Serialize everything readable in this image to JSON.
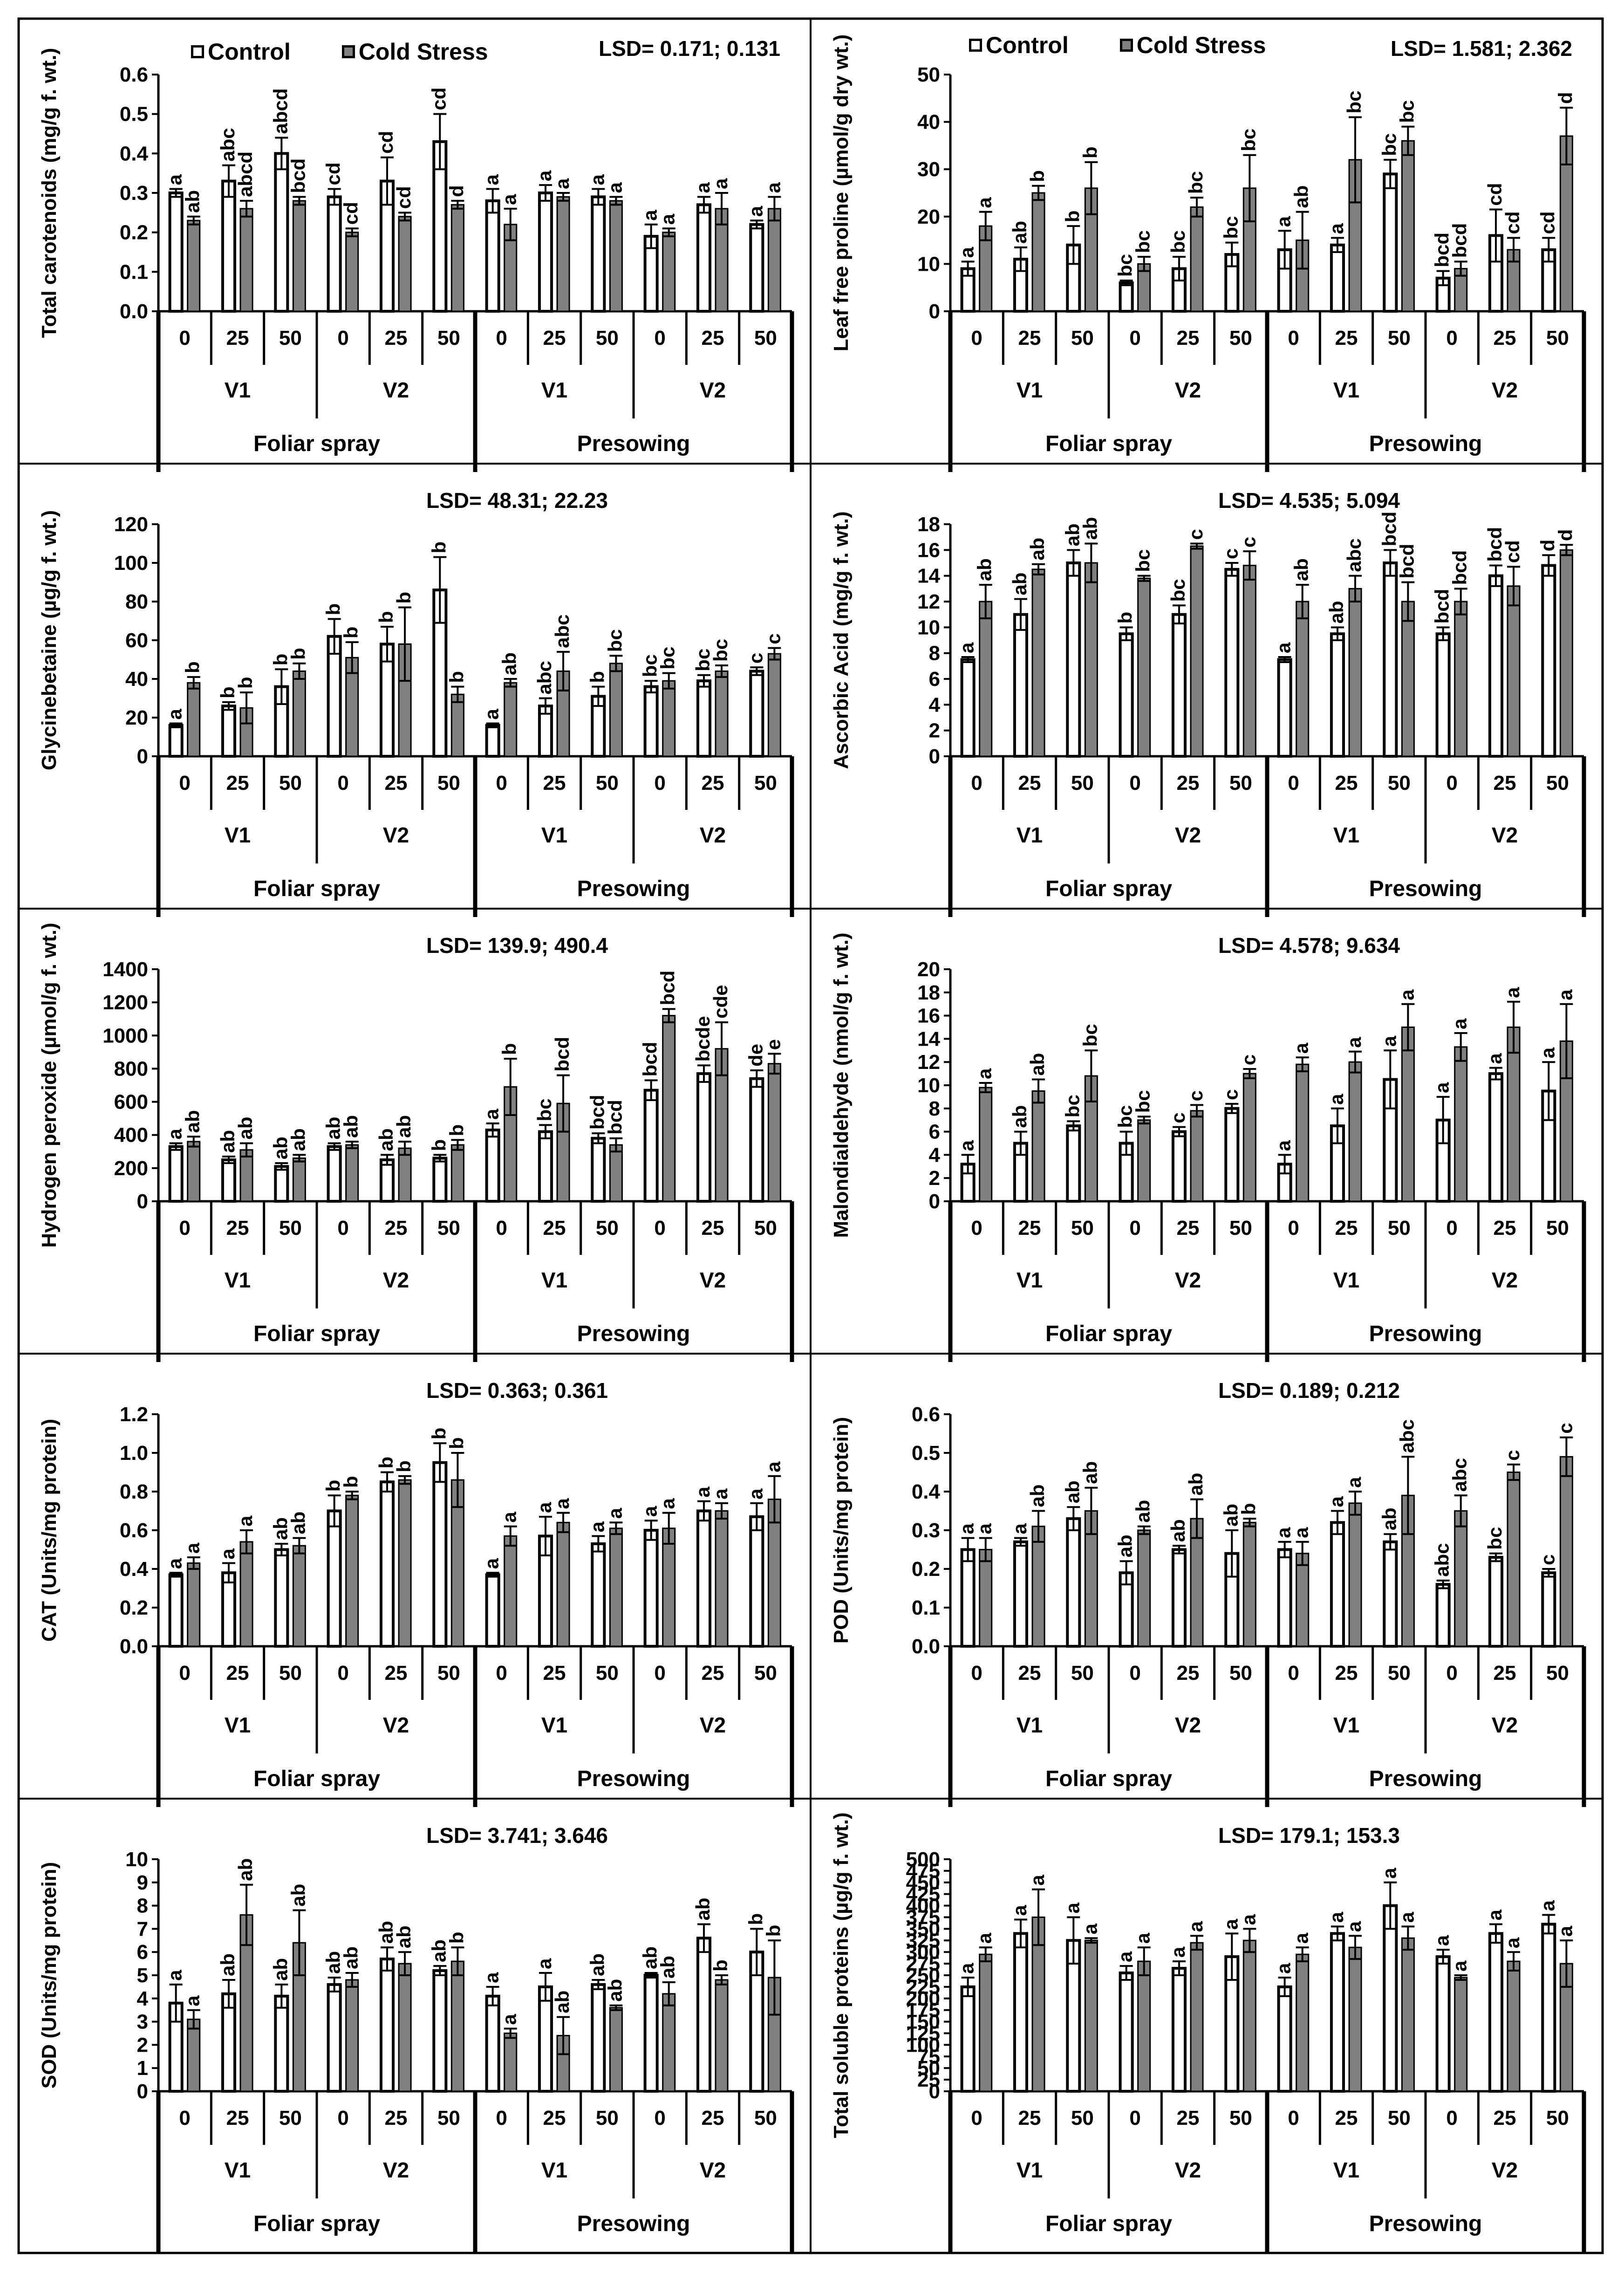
{
  "colors": {
    "control": "#ffffff",
    "cold": "#808080",
    "axis": "#000000",
    "frame": "#000000"
  },
  "legend": {
    "control": "Control",
    "cold": "Cold Stress"
  },
  "x_structure": {
    "levels": [
      "0",
      "25",
      "50"
    ],
    "varieties": [
      "V1",
      "V2"
    ],
    "methods": [
      "Foliar spray",
      "Presowing"
    ]
  },
  "chart_data": [
    {
      "id": "carotenoids",
      "type": "bar",
      "show_legend": true,
      "title": "",
      "lsd": "LSD= 0.171; 0.131",
      "ylabel": "Total carotenoids (mg/g f. wt.)",
      "ylim": [
        0,
        0.6
      ],
      "ystep": 0.1,
      "ydecimals": 1,
      "series": [
        {
          "name": "Control",
          "values": [
            0.3,
            0.33,
            0.4,
            0.29,
            0.33,
            0.43,
            0.28,
            0.3,
            0.29,
            0.19,
            0.27,
            0.22
          ],
          "errors": [
            0.01,
            0.04,
            0.04,
            0.02,
            0.06,
            0.07,
            0.03,
            0.02,
            0.02,
            0.03,
            0.02,
            0.01
          ],
          "letters": [
            "a",
            "abc",
            "abcd",
            "cd",
            "cd",
            "cd",
            "a",
            "a",
            "a",
            "a",
            "a",
            "a"
          ]
        },
        {
          "name": "Cold Stress",
          "values": [
            0.23,
            0.26,
            0.28,
            0.2,
            0.24,
            0.27,
            0.22,
            0.29,
            0.28,
            0.2,
            0.26,
            0.26
          ],
          "errors": [
            0.01,
            0.02,
            0.01,
            0.01,
            0.01,
            0.01,
            0.04,
            0.01,
            0.01,
            0.01,
            0.04,
            0.03
          ],
          "letters": [
            "ab",
            "abcd",
            "bcd",
            "cd",
            "cd",
            "d",
            "a",
            "a",
            "a",
            "a",
            "a",
            "a"
          ]
        }
      ]
    },
    {
      "id": "proline",
      "type": "bar",
      "show_legend": true,
      "title": "",
      "lsd": "LSD= 1.581; 2.362",
      "ylabel": "Leaf free proline (µmol/g dry wt.)",
      "ylim": [
        0,
        50
      ],
      "ystep": 10,
      "ydecimals": 0,
      "series": [
        {
          "name": "Control",
          "values": [
            9,
            11,
            14,
            6,
            9,
            12,
            13,
            14,
            29,
            7,
            16,
            13
          ],
          "errors": [
            1.5,
            2.5,
            4,
            0.5,
            2.5,
            2.5,
            4,
            1.5,
            3,
            1.5,
            5.5,
            2.5
          ],
          "letters": [
            "a",
            "ab",
            "b",
            "bc",
            "bc",
            "bc",
            "a",
            "a",
            "bc",
            "bcd",
            "cd",
            "cd"
          ]
        },
        {
          "name": "Cold Stress",
          "values": [
            18,
            25,
            26,
            10,
            22,
            26,
            15,
            32,
            36,
            9,
            13,
            37
          ],
          "errors": [
            3,
            1.5,
            5.5,
            1.5,
            2,
            7,
            6,
            9,
            3,
            1.5,
            2.5,
            6
          ],
          "letters": [
            "a",
            "b",
            "b",
            "bc",
            "bc",
            "bc",
            "ab",
            "bc",
            "bc",
            "bcd",
            "cd",
            "d"
          ]
        }
      ]
    },
    {
      "id": "glycinebetaine",
      "type": "bar",
      "show_legend": false,
      "title": "",
      "lsd": "LSD= 48.31; 22.23",
      "ylabel": "Glycinebetaine (µg/g f. wt.)",
      "ylim": [
        0,
        120
      ],
      "ystep": 20,
      "ydecimals": 0,
      "series": [
        {
          "name": "Control",
          "values": [
            16,
            26,
            36,
            62,
            58,
            86,
            16,
            26,
            31,
            36,
            39,
            44
          ],
          "errors": [
            1,
            2,
            9,
            9,
            9,
            17,
            1,
            4,
            5,
            3,
            3,
            2
          ],
          "letters": [
            "a",
            "b",
            "b",
            "b",
            "b",
            "b",
            "a",
            "abc",
            "b",
            "bc",
            "bc",
            "c"
          ]
        },
        {
          "name": "Cold Stress",
          "values": [
            38,
            25,
            44,
            51,
            58,
            32,
            38,
            44,
            48,
            39,
            44,
            53
          ],
          "errors": [
            3,
            8,
            4,
            8,
            19,
            4,
            2,
            10,
            4,
            4,
            3,
            3
          ],
          "letters": [
            "b",
            "b",
            "b",
            "b",
            "b",
            "b",
            "ab",
            "abc",
            "bc",
            "bc",
            "bc",
            "c"
          ]
        }
      ]
    },
    {
      "id": "ascorbic",
      "type": "bar",
      "show_legend": false,
      "title": "",
      "lsd": "LSD= 4.535; 5.094",
      "ylabel": "Ascorbic Acid (mg/g f. wt.)",
      "ylim": [
        0,
        18
      ],
      "ystep": 2,
      "ydecimals": 0,
      "series": [
        {
          "name": "Control",
          "values": [
            7.5,
            11,
            15,
            9.5,
            11,
            14.5,
            7.5,
            9.5,
            15,
            9.5,
            14,
            14.8
          ],
          "errors": [
            0.2,
            1.2,
            1,
            0.5,
            0.7,
            0.5,
            0.2,
            0.5,
            1,
            0.5,
            0.8,
            0.8
          ],
          "letters": [
            "a",
            "ab",
            "ab",
            "b",
            "bc",
            "c",
            "a",
            "ab",
            "bcd",
            "bcd",
            "bcd",
            "d"
          ]
        },
        {
          "name": "Cold Stress",
          "values": [
            12,
            14.5,
            15,
            13.8,
            16.3,
            14.8,
            12,
            13,
            12,
            12,
            13.2,
            16
          ],
          "errors": [
            1.3,
            0.4,
            1.5,
            0.2,
            0.2,
            1.1,
            1.3,
            1,
            1.5,
            1,
            1.5,
            0.4
          ],
          "letters": [
            "ab",
            "ab",
            "ab",
            "bc",
            "c",
            "c",
            "ab",
            "abc",
            "bcd",
            "bcd",
            "cd",
            "d"
          ]
        }
      ]
    },
    {
      "id": "h2o2",
      "type": "bar",
      "show_legend": false,
      "title": "",
      "lsd": "LSD= 139.9; 490.4",
      "ylabel": "Hydrogen peroxide (µmol/g f. wt.)",
      "ylim": [
        0,
        1400
      ],
      "ystep": 200,
      "ydecimals": 0,
      "series": [
        {
          "name": "Control",
          "values": [
            330,
            250,
            210,
            330,
            250,
            260,
            430,
            420,
            380,
            670,
            770,
            740
          ],
          "errors": [
            20,
            20,
            20,
            20,
            30,
            20,
            40,
            40,
            30,
            60,
            50,
            50
          ],
          "letters": [
            "a",
            "ab",
            "ab",
            "ab",
            "ab",
            "b",
            "a",
            "bc",
            "bcd",
            "bcd",
            "bcde",
            "de"
          ]
        },
        {
          "name": "Cold Stress",
          "values": [
            360,
            310,
            260,
            340,
            320,
            340,
            690,
            590,
            340,
            1120,
            920,
            830
          ],
          "errors": [
            30,
            40,
            20,
            20,
            40,
            30,
            170,
            170,
            40,
            40,
            160,
            60
          ],
          "letters": [
            "ab",
            "ab",
            "ab",
            "ab",
            "ab",
            "b",
            "b",
            "bcd",
            "bcd",
            "bcd",
            "cde",
            "e"
          ]
        }
      ]
    },
    {
      "id": "mda",
      "type": "bar",
      "show_legend": false,
      "title": "",
      "lsd": "LSD= 4.578; 9.634",
      "ylabel": "Malondialdehyde (nmol/g f. wt.)",
      "ylim": [
        0,
        20
      ],
      "ystep": 2,
      "ydecimals": 0,
      "series": [
        {
          "name": "Control",
          "values": [
            3.2,
            5,
            6.5,
            5,
            6,
            8,
            3.2,
            6.5,
            10.5,
            7,
            11,
            9.5
          ],
          "errors": [
            0.8,
            1,
            0.4,
            1,
            0.4,
            0.4,
            0.8,
            1.5,
            2.5,
            2,
            0.5,
            2.5
          ],
          "letters": [
            "a",
            "ab",
            "bc",
            "bc",
            "c",
            "c",
            "a",
            "a",
            "a",
            "a",
            "a",
            "a"
          ]
        },
        {
          "name": "Cold Stress",
          "values": [
            9.8,
            9.5,
            10.8,
            7,
            7.8,
            11,
            11.8,
            12,
            15,
            13.3,
            15,
            13.8
          ],
          "errors": [
            0.4,
            1,
            2.2,
            0.3,
            0.5,
            0.4,
            0.6,
            0.9,
            2,
            1.2,
            2.2,
            3.2
          ],
          "letters": [
            "a",
            "ab",
            "bc",
            "bc",
            "c",
            "c",
            "a",
            "a",
            "a",
            "a",
            "a",
            "a"
          ]
        }
      ]
    },
    {
      "id": "cat",
      "type": "bar",
      "show_legend": false,
      "title": "",
      "lsd": "LSD= 0.363; 0.361",
      "ylabel": "CAT (Units/mg protein)",
      "ylim": [
        0,
        1.2
      ],
      "ystep": 0.2,
      "ydecimals": 1,
      "series": [
        {
          "name": "Control",
          "values": [
            0.37,
            0.38,
            0.5,
            0.7,
            0.85,
            0.95,
            0.37,
            0.57,
            0.53,
            0.6,
            0.7,
            0.67
          ],
          "errors": [
            0.01,
            0.05,
            0.03,
            0.08,
            0.05,
            0.1,
            0.01,
            0.1,
            0.04,
            0.05,
            0.05,
            0.07
          ],
          "letters": [
            "a",
            "a",
            "ab",
            "b",
            "b",
            "b",
            "a",
            "a",
            "a",
            "a",
            "a",
            "a"
          ]
        },
        {
          "name": "Cold Stress",
          "values": [
            0.43,
            0.54,
            0.52,
            0.78,
            0.86,
            0.86,
            0.57,
            0.64,
            0.61,
            0.61,
            0.7,
            0.76
          ],
          "errors": [
            0.03,
            0.06,
            0.04,
            0.02,
            0.02,
            0.14,
            0.05,
            0.05,
            0.03,
            0.08,
            0.04,
            0.12
          ],
          "letters": [
            "a",
            "a",
            "ab",
            "b",
            "b",
            "b",
            "a",
            "a",
            "a",
            "a",
            "a",
            "a"
          ]
        }
      ]
    },
    {
      "id": "pod",
      "type": "bar",
      "show_legend": false,
      "title": "",
      "lsd": "LSD= 0.189; 0.212",
      "ylabel": "POD (Units/mg protein)",
      "ylim": [
        0,
        0.6
      ],
      "ystep": 0.1,
      "ydecimals": 1,
      "series": [
        {
          "name": "Control",
          "values": [
            0.25,
            0.27,
            0.33,
            0.19,
            0.25,
            0.24,
            0.25,
            0.32,
            0.27,
            0.16,
            0.23,
            0.19
          ],
          "errors": [
            0.03,
            0.01,
            0.03,
            0.03,
            0.01,
            0.06,
            0.02,
            0.03,
            0.02,
            0.01,
            0.01,
            0.01
          ],
          "letters": [
            "a",
            "a",
            "ab",
            "ab",
            "ab",
            "ab",
            "a",
            "a",
            "ab",
            "abc",
            "bc",
            "c"
          ]
        },
        {
          "name": "Cold Stress",
          "values": [
            0.25,
            0.31,
            0.35,
            0.3,
            0.33,
            0.32,
            0.24,
            0.37,
            0.39,
            0.35,
            0.45,
            0.49
          ],
          "errors": [
            0.03,
            0.04,
            0.06,
            0.01,
            0.05,
            0.01,
            0.03,
            0.03,
            0.1,
            0.04,
            0.02,
            0.05
          ],
          "letters": [
            "a",
            "ab",
            "ab",
            "ab",
            "ab",
            "b",
            "a",
            "a",
            "abc",
            "abc",
            "c",
            "c"
          ]
        }
      ]
    },
    {
      "id": "sod",
      "type": "bar",
      "show_legend": false,
      "title": "",
      "lsd": "LSD= 3.741; 3.646",
      "ylabel": "SOD (Units/mg protein)",
      "ylim": [
        0,
        10
      ],
      "ystep": 1,
      "ydecimals": 0,
      "series": [
        {
          "name": "Control",
          "values": [
            3.8,
            4.2,
            4.1,
            4.6,
            5.7,
            5.2,
            4.1,
            4.5,
            4.6,
            5.0,
            6.6,
            6.0
          ],
          "errors": [
            0.8,
            0.6,
            0.5,
            0.3,
            0.5,
            0.2,
            0.4,
            0.6,
            0.2,
            0.1,
            0.6,
            1.0
          ],
          "letters": [
            "a",
            "ab",
            "ab",
            "ab",
            "ab",
            "ab",
            "a",
            "a",
            "ab",
            "ab",
            "ab",
            "b"
          ]
        },
        {
          "name": "Cold Stress",
          "values": [
            3.1,
            7.6,
            6.4,
            4.8,
            5.5,
            5.6,
            2.5,
            2.4,
            3.6,
            4.2,
            4.8,
            4.9
          ],
          "errors": [
            0.4,
            1.3,
            1.4,
            0.3,
            0.5,
            0.6,
            0.2,
            0.8,
            0.1,
            0.5,
            0.2,
            1.6
          ],
          "letters": [
            "a",
            "ab",
            "ab",
            "ab",
            "ab",
            "b",
            "a",
            "ab",
            "ab",
            "ab",
            "b",
            "b"
          ]
        }
      ]
    },
    {
      "id": "proteins",
      "type": "bar",
      "show_legend": false,
      "title": "",
      "lsd": "LSD= 179.1; 153.3",
      "ylabel": "Total soluble proteins (µg/g f. wt.)",
      "ylim": [
        0,
        500
      ],
      "ystep": 25,
      "ydecimals": 0,
      "series": [
        {
          "name": "Control",
          "values": [
            225,
            340,
            325,
            255,
            265,
            290,
            225,
            340,
            400,
            290,
            340,
            360
          ],
          "errors": [
            20,
            30,
            50,
            15,
            15,
            50,
            20,
            15,
            50,
            15,
            20,
            20
          ],
          "letters": [
            "a",
            "a",
            "a",
            "a",
            "a",
            "a",
            "a",
            "a",
            "a",
            "a",
            "a",
            "a"
          ]
        },
        {
          "name": "Cold Stress",
          "values": [
            295,
            375,
            325,
            280,
            320,
            325,
            295,
            310,
            330,
            245,
            280,
            275
          ],
          "errors": [
            15,
            60,
            5,
            30,
            15,
            25,
            15,
            25,
            25,
            5,
            20,
            50
          ],
          "letters": [
            "a",
            "a",
            "a",
            "a",
            "a",
            "a",
            "a",
            "a",
            "a",
            "a",
            "a",
            "a"
          ]
        }
      ]
    }
  ]
}
